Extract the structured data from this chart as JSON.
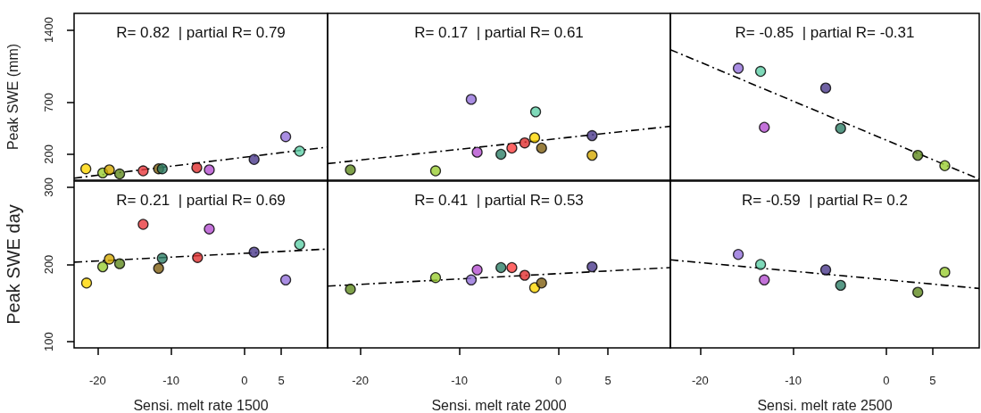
{
  "chart_data": [
    {
      "type": "scatter",
      "ylabel": "Peak SWE (mm)",
      "annotations": [
        "R= 0.82  | partial R= 0.79"
      ],
      "xlim": [
        -23.2,
        11.3
      ],
      "xticks": [
        -20,
        -10,
        0,
        5
      ],
      "ylim": [
        -50,
        1560
      ],
      "yticks": [
        200,
        700,
        1400
      ],
      "tick_labels": "y",
      "series": [
        {
          "x": [
            -21.6,
            -19.3,
            -18.4,
            -17.0,
            -13.8,
            -11.7,
            -11.2,
            -6.5,
            -4.8,
            1.3,
            5.6,
            7.5
          ],
          "values": [
            60,
            20,
            50,
            10,
            40,
            60,
            60,
            70,
            50,
            150,
            370,
            230
          ],
          "colors": [
            "#ffd700",
            "#9acd32",
            "#d4a900",
            "#5f8a1e",
            "#e8383d",
            "#7f5f10",
            "#2e8068",
            "#e03030",
            "#b44fd0",
            "#4b3a8c",
            "#9370db",
            "#5fd0a8"
          ],
          "marker": "circle"
        },
        {
          "type": "line",
          "x": [
            -23.2,
            11.3
          ],
          "values": [
            -30,
            270
          ],
          "color": "#000000",
          "line_style": "dashed",
          "marker": "none"
        }
      ]
    },
    {
      "type": "scatter",
      "annotations": [
        "R= 0.17  | partial R= 0.61"
      ],
      "xlim": [
        -23.3,
        11.3
      ],
      "xticks": [
        -20,
        -10,
        0,
        5
      ],
      "ylim": [
        -50,
        1560
      ],
      "yticks": [
        200,
        700,
        1400
      ],
      "tick_labels": false,
      "series": [
        {
          "x": [
            -21.0,
            -12.4,
            -8.8,
            -8.2,
            -5.8,
            -4.7,
            -3.4,
            -2.4,
            -2.3,
            -1.7,
            3.4,
            3.4
          ],
          "values": [
            50,
            40,
            730,
            220,
            200,
            260,
            310,
            360,
            610,
            260,
            190,
            380
          ],
          "colors": [
            "#5f8a1e",
            "#9acd32",
            "#9370db",
            "#b44fd0",
            "#2e8068",
            "#ff4040",
            "#e03030",
            "#ffd700",
            "#5fd0a8",
            "#7f5f10",
            "#d4a900",
            "#4b3a8c"
          ],
          "marker": "circle"
        },
        {
          "type": "line",
          "x": [
            -23.3,
            11.3
          ],
          "values": [
            110,
            470
          ],
          "color": "#000000",
          "line_style": "dashed",
          "marker": "none"
        }
      ]
    },
    {
      "type": "scatter",
      "annotations": [
        "R= -0.85  | partial R= -0.31"
      ],
      "xlim": [
        -23.2,
        10
      ],
      "xticks": [
        -20,
        -10,
        0,
        5
      ],
      "ylim": [
        -50,
        1560
      ],
      "yticks": [
        200,
        700,
        1400
      ],
      "tick_labels": false,
      "series": [
        {
          "x": [
            -15.9,
            -13.5,
            -13.1,
            -6.5,
            -4.9,
            3.4,
            6.3
          ],
          "values": [
            1030,
            1000,
            460,
            840,
            450,
            190,
            90
          ],
          "colors": [
            "#9370db",
            "#5fd0a8",
            "#b44fd0",
            "#4b3a8c",
            "#2e8068",
            "#5f8a1e",
            "#9acd32"
          ],
          "marker": "circle"
        },
        {
          "type": "line",
          "x": [
            -23.2,
            10
          ],
          "values": [
            1210,
            -40
          ],
          "color": "#000000",
          "line_style": "dashed",
          "marker": "none"
        }
      ]
    },
    {
      "type": "scatter",
      "ylabel": "Peak SWE day",
      "xlabel": "Sensi. melt rate 1500",
      "annotations": [
        "R= 0.21  | partial R= 0.69"
      ],
      "xlim": [
        -23.2,
        11.3
      ],
      "xticks": [
        -20,
        -10,
        0,
        5
      ],
      "ylim": [
        92,
        308
      ],
      "yticks": [
        100,
        200,
        300
      ],
      "series": [
        {
          "x": [
            -21.5,
            -19.3,
            -18.4,
            -17.0,
            -13.8,
            -11.7,
            -11.2,
            -6.4,
            -4.8,
            1.3,
            5.6,
            7.5
          ],
          "values": [
            176,
            197,
            207,
            201,
            252,
            195,
            208,
            209,
            246,
            216,
            180,
            226
          ],
          "colors": [
            "#ffd700",
            "#9acd32",
            "#d4a900",
            "#5f8a1e",
            "#e8383d",
            "#7f5f10",
            "#2e8068",
            "#e03030",
            "#b44fd0",
            "#4b3a8c",
            "#9370db",
            "#5fd0a8"
          ],
          "marker": "circle"
        },
        {
          "type": "line",
          "x": [
            -23.2,
            11.3
          ],
          "values": [
            203,
            220
          ],
          "color": "#000000",
          "line_style": "dashed",
          "marker": "none"
        }
      ]
    },
    {
      "type": "scatter",
      "xlabel": "Sensi. melt rate 2000",
      "annotations": [
        "R= 0.41  | partial R= 0.53"
      ],
      "xlim": [
        -23.3,
        11.3
      ],
      "xticks": [
        -20,
        -10,
        0,
        5
      ],
      "ylim": [
        92,
        308
      ],
      "yticks": [
        100,
        200,
        300
      ],
      "tick_labels": "x",
      "series": [
        {
          "x": [
            -21.0,
            -12.4,
            -8.8,
            -8.2,
            -5.8,
            -4.7,
            -3.4,
            -2.4,
            -1.7,
            3.4
          ],
          "values": [
            168,
            183,
            180,
            193,
            196,
            196,
            186,
            170,
            176,
            197
          ],
          "colors": [
            "#5f8a1e",
            "#9acd32",
            "#9370db",
            "#b44fd0",
            "#2e8068",
            "#ff4040",
            "#e03030",
            "#ffd700",
            "#7f5f10",
            "#4b3a8c"
          ],
          "marker": "circle"
        },
        {
          "type": "line",
          "x": [
            -23.3,
            11.3
          ],
          "values": [
            172,
            196
          ],
          "color": "#000000",
          "line_style": "dashed",
          "marker": "none"
        }
      ]
    },
    {
      "type": "scatter",
      "xlabel": "Sensi. melt rate 2500",
      "annotations": [
        "R= -0.59  | partial R= 0.2"
      ],
      "xlim": [
        -23.2,
        10
      ],
      "xticks": [
        -20,
        -10,
        0,
        5
      ],
      "ylim": [
        92,
        308
      ],
      "yticks": [
        100,
        200,
        300
      ],
      "tick_labels": "x",
      "series": [
        {
          "x": [
            -15.9,
            -13.5,
            -13.1,
            -6.5,
            -4.9,
            3.4,
            6.3
          ],
          "values": [
            213,
            200,
            180,
            193,
            173,
            164,
            190
          ],
          "colors": [
            "#9370db",
            "#5fd0a8",
            "#b44fd0",
            "#4b3a8c",
            "#2e8068",
            "#5f8a1e",
            "#9acd32"
          ],
          "marker": "circle"
        },
        {
          "type": "line",
          "x": [
            -23.2,
            10
          ],
          "values": [
            206,
            169
          ],
          "color": "#000000",
          "line_style": "dashed",
          "marker": "none"
        }
      ]
    }
  ]
}
